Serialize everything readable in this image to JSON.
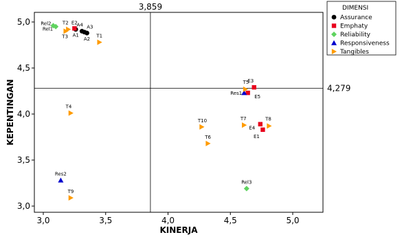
{
  "chart_data": {
    "type": "scatter",
    "xlabel": "KINERJA",
    "ylabel": "KEPENTINGAN",
    "xlim": [
      3.0,
      5.0
    ],
    "ylim": [
      2.97,
      5.05
    ],
    "x_ticks": [
      "3,0",
      "3,5",
      "4,0",
      "4,5",
      "5,0"
    ],
    "y_ticks": [
      "3,0",
      "3,5",
      "4,0",
      "4,5",
      "5,0"
    ],
    "x_tick_values": [
      3.0,
      3.5,
      4.0,
      4.5,
      5.0
    ],
    "y_tick_values": [
      3.0,
      3.5,
      4.0,
      4.5,
      5.0
    ],
    "reference_lines": {
      "x": {
        "value": 3.859,
        "label": "3,859"
      },
      "y": {
        "value": 4.279,
        "label": "4,279"
      }
    },
    "legend": {
      "title": "DIMENSI",
      "placement": "top-right"
    },
    "series": [
      {
        "name": "Assurance",
        "marker": "circle",
        "color": "#000000",
        "points": [
          {
            "label": "A1",
            "x": 3.26,
            "y": 4.92
          },
          {
            "label": "A2",
            "x": 3.35,
            "y": 4.88
          },
          {
            "label": "A3",
            "x": 3.33,
            "y": 4.89
          },
          {
            "label": "A4",
            "x": 3.31,
            "y": 4.9
          }
        ]
      },
      {
        "name": "Emphaty",
        "marker": "square",
        "color": "#e8001c",
        "points": [
          {
            "label": "E2",
            "x": 3.25,
            "y": 4.93
          },
          {
            "label": "E3",
            "x": 4.69,
            "y": 4.29
          },
          {
            "label": "E5",
            "x": 4.64,
            "y": 4.23
          },
          {
            "label": "E4",
            "x": 4.74,
            "y": 3.89
          },
          {
            "label": "E1",
            "x": 4.76,
            "y": 3.83
          }
        ]
      },
      {
        "name": "Reliability",
        "marker": "diamond",
        "color": "#5fd35f",
        "points": [
          {
            "label": "Rel2",
            "x": 3.08,
            "y": 4.96
          },
          {
            "label": "Rel1",
            "x": 3.1,
            "y": 4.95
          },
          {
            "label": "Rel3",
            "x": 4.63,
            "y": 3.19
          }
        ]
      },
      {
        "name": "Responsiveness",
        "marker": "triangle",
        "color": "#0000cc",
        "points": [
          {
            "label": "Res1",
            "x": 4.61,
            "y": 4.23
          },
          {
            "label": "Res2",
            "x": 3.14,
            "y": 3.28
          }
        ]
      },
      {
        "name": "Tangibles",
        "marker": "triangle-right",
        "color": "#ff9b00",
        "points": [
          {
            "label": "T2",
            "x": 3.2,
            "y": 4.92
          },
          {
            "label": "T3",
            "x": 3.18,
            "y": 4.9
          },
          {
            "label": "T1",
            "x": 3.45,
            "y": 4.78
          },
          {
            "label": "T5",
            "x": 4.62,
            "y": 4.27
          },
          {
            "label": "T4",
            "x": 3.22,
            "y": 4.01
          },
          {
            "label": "T10",
            "x": 4.27,
            "y": 3.86
          },
          {
            "label": "T7",
            "x": 4.61,
            "y": 3.88
          },
          {
            "label": "T8",
            "x": 4.81,
            "y": 3.87
          },
          {
            "label": "T6",
            "x": 4.32,
            "y": 3.68
          },
          {
            "label": "T9",
            "x": 3.22,
            "y": 3.09
          }
        ]
      }
    ]
  }
}
